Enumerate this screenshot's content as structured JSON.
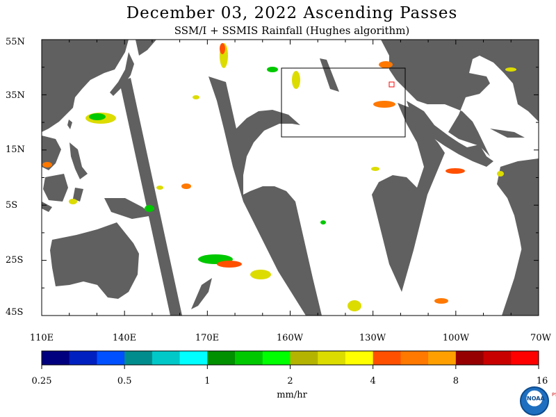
{
  "title": "December 03, 2022  Ascending Passes",
  "subtitle": "SSM/I + SSMIS Rainfall (Hughes algorithm)",
  "lat_labels": [
    "55N",
    "35N",
    "15N",
    "5S",
    "25S",
    "45S"
  ],
  "lon_labels": [
    "110E",
    "140E",
    "170E",
    "160W",
    "130W",
    "100W",
    "70W"
  ],
  "colorbar": {
    "colors": [
      "#00007f",
      "#0020c0",
      "#0050ff",
      "#008c8c",
      "#00c8c8",
      "#00ffff",
      "#009000",
      "#00c800",
      "#00ff00",
      "#b4b400",
      "#dcdc00",
      "#ffff00",
      "#ff5000",
      "#ff7800",
      "#ffa000",
      "#960000",
      "#c80000",
      "#ff0000"
    ],
    "labels": [
      "0.25",
      "0.5",
      "1",
      "2",
      "4",
      "8",
      "16"
    ]
  },
  "units": "mm/hr",
  "logo": {
    "agency": "NOAA",
    "lab": "PSL"
  },
  "colors": {
    "land": "#606060",
    "ocean": "#ffffff",
    "no_data": "#606060",
    "box": "#000000"
  }
}
